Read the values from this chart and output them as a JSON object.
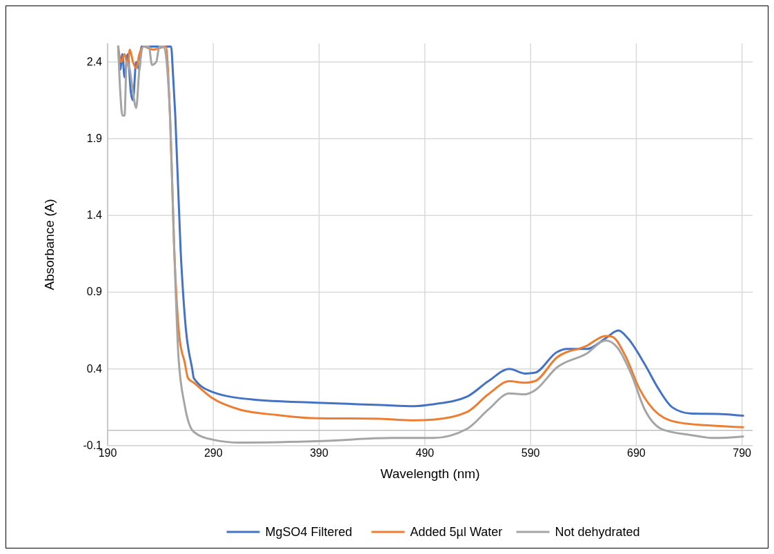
{
  "chart_data": {
    "type": "line",
    "xlabel": "Wavelength (nm)",
    "ylabel": "Absorbance (A)",
    "xlim": [
      190,
      800
    ],
    "ylim": [
      -0.1,
      2.52
    ],
    "xticks": [
      190,
      290,
      390,
      490,
      590,
      690,
      790
    ],
    "yticks": [
      -0.1,
      0.4,
      0.9,
      1.4,
      1.9,
      2.4
    ],
    "grid": true,
    "legend": "bottom",
    "marker": "none",
    "line_style": "solid",
    "series": [
      {
        "name": "MgSO4 Filtered",
        "color": "#4472c4",
        "x": [
          200,
          202,
          204,
          206,
          209,
          212,
          214,
          217,
          220,
          222,
          245,
          250,
          252,
          254,
          259,
          264,
          270,
          271.5,
          289,
          328,
          388,
          448,
          480,
          498,
          530,
          550,
          570,
          585,
          594,
          615,
          624,
          643,
          661,
          673,
          682,
          698,
          711,
          724,
          741,
          774,
          791
        ],
        "values": [
          2.5,
          2.35,
          2.45,
          2.3,
          2.45,
          2.2,
          2.15,
          2.4,
          2.35,
          2.5,
          2.5,
          2.5,
          2.3,
          2.05,
          1.18,
          0.66,
          0.4,
          0.34,
          0.25,
          0.2,
          0.18,
          0.165,
          0.157,
          0.17,
          0.22,
          0.32,
          0.4,
          0.37,
          0.375,
          0.51,
          0.53,
          0.53,
          0.6,
          0.65,
          0.6,
          0.43,
          0.27,
          0.15,
          0.11,
          0.105,
          0.095
        ]
      },
      {
        "name": "Added 5µl Water",
        "color": "#ed7d31",
        "x": [
          200,
          203,
          206,
          209,
          211,
          214,
          217,
          220,
          224,
          233,
          245,
          249,
          253,
          258,
          263,
          266,
          271.5,
          289,
          315,
          350,
          382,
          448,
          480,
          498,
          530,
          550,
          570,
          585,
          594,
          615,
          643,
          661,
          667,
          680,
          693,
          711,
          731,
          763,
          791
        ],
        "values": [
          2.5,
          2.4,
          2.45,
          2.38,
          2.48,
          2.4,
          2.36,
          2.45,
          2.5,
          2.48,
          2.5,
          2.05,
          1.18,
          0.6,
          0.44,
          0.34,
          0.31,
          0.21,
          0.135,
          0.1,
          0.08,
          0.075,
          0.065,
          0.07,
          0.12,
          0.235,
          0.32,
          0.31,
          0.32,
          0.475,
          0.55,
          0.615,
          0.61,
          0.48,
          0.27,
          0.105,
          0.05,
          0.03,
          0.02
        ]
      },
      {
        "name": "Not dehydrated",
        "color": "#a5a5a5",
        "x": [
          200,
          202,
          204,
          206,
          208,
          211,
          214,
          217,
          220,
          224,
          229,
          232,
          236,
          239,
          243,
          249,
          253,
          257,
          263,
          271.5,
          289,
          315,
          393,
          459,
          480,
          498,
          530,
          550,
          570,
          585,
          594,
          615,
          643,
          661,
          672,
          685,
          698,
          715,
          741,
          763,
          791
        ],
        "values": [
          2.5,
          2.2,
          2.05,
          2.05,
          2.4,
          2.35,
          2.2,
          2.1,
          2.35,
          2.5,
          2.5,
          2.38,
          2.4,
          2.5,
          2.5,
          2.05,
          1.18,
          0.48,
          0.16,
          -0.01,
          -0.06,
          -0.08,
          -0.07,
          -0.05,
          -0.05,
          -0.05,
          0.01,
          0.135,
          0.24,
          0.235,
          0.26,
          0.41,
          0.5,
          0.585,
          0.54,
          0.37,
          0.135,
          0.005,
          -0.03,
          -0.05,
          -0.04
        ]
      }
    ]
  }
}
